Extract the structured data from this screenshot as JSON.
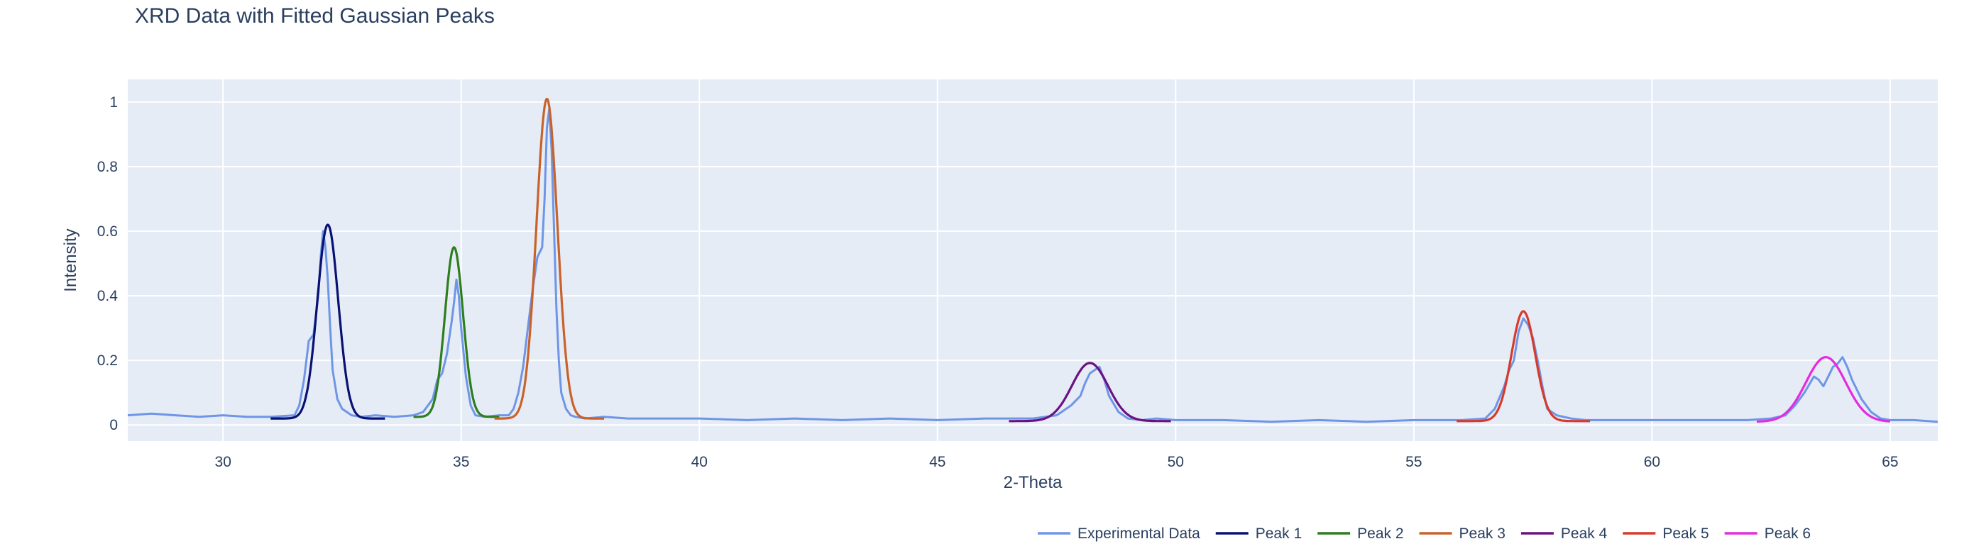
{
  "chart_data": {
    "type": "line",
    "title": "XRD Data with Fitted Gaussian Peaks",
    "xlabel": "2-Theta",
    "ylabel": "Intensity",
    "xlim": [
      28,
      66
    ],
    "ylim": [
      -0.05,
      1.07
    ],
    "xticks": [
      30,
      35,
      40,
      45,
      50,
      55,
      60,
      65
    ],
    "yticks": [
      0,
      0.2,
      0.4,
      0.6,
      0.8,
      1
    ],
    "ytick_labels": [
      "0",
      "0.2",
      "0.4",
      "0.6",
      "0.8",
      "1"
    ],
    "grid": true,
    "legend_position": "bottom-right, horizontal",
    "plot_background": "#e5ecf6",
    "experimental": {
      "name": "Experimental Data",
      "color": "#6f95e6",
      "x": [
        28.0,
        28.5,
        29.0,
        29.5,
        30.0,
        30.5,
        31.0,
        31.5,
        31.6,
        31.7,
        31.8,
        31.9,
        32.0,
        32.05,
        32.1,
        32.15,
        32.2,
        32.25,
        32.3,
        32.4,
        32.5,
        32.6,
        32.7,
        32.9,
        33.2,
        33.6,
        34.0,
        34.2,
        34.4,
        34.5,
        34.6,
        34.7,
        34.8,
        34.85,
        34.9,
        34.95,
        35.0,
        35.1,
        35.2,
        35.3,
        35.5,
        35.8,
        36.0,
        36.1,
        36.2,
        36.3,
        36.4,
        36.5,
        36.6,
        36.7,
        36.75,
        36.8,
        36.85,
        36.9,
        36.95,
        37.0,
        37.05,
        37.1,
        37.2,
        37.3,
        37.4,
        37.6,
        38.0,
        38.5,
        39.0,
        40.0,
        41.0,
        42.0,
        43.0,
        44.0,
        45.0,
        46.0,
        46.5,
        47.0,
        47.5,
        47.8,
        48.0,
        48.1,
        48.2,
        48.3,
        48.4,
        48.5,
        48.6,
        48.8,
        49.0,
        49.3,
        49.6,
        50.0,
        51.0,
        52.0,
        53.0,
        54.0,
        55.0,
        56.0,
        56.5,
        56.7,
        56.9,
        57.0,
        57.1,
        57.2,
        57.3,
        57.4,
        57.5,
        57.6,
        57.7,
        57.8,
        58.0,
        58.3,
        58.6,
        59.0,
        60.0,
        61.0,
        62.0,
        62.5,
        62.8,
        63.0,
        63.2,
        63.4,
        63.5,
        63.6,
        63.7,
        63.8,
        63.9,
        64.0,
        64.1,
        64.2,
        64.4,
        64.6,
        64.8,
        65.0,
        65.5,
        66.0
      ],
      "y": [
        0.03,
        0.035,
        0.03,
        0.025,
        0.03,
        0.025,
        0.025,
        0.03,
        0.06,
        0.14,
        0.26,
        0.28,
        0.4,
        0.52,
        0.6,
        0.55,
        0.45,
        0.3,
        0.17,
        0.08,
        0.05,
        0.04,
        0.03,
        0.025,
        0.03,
        0.025,
        0.03,
        0.04,
        0.08,
        0.14,
        0.16,
        0.22,
        0.32,
        0.38,
        0.45,
        0.4,
        0.3,
        0.15,
        0.06,
        0.03,
        0.025,
        0.03,
        0.03,
        0.05,
        0.1,
        0.18,
        0.3,
        0.42,
        0.52,
        0.55,
        0.7,
        0.92,
        0.98,
        0.85,
        0.6,
        0.36,
        0.2,
        0.1,
        0.05,
        0.03,
        0.025,
        0.02,
        0.025,
        0.02,
        0.02,
        0.02,
        0.015,
        0.02,
        0.015,
        0.02,
        0.015,
        0.02,
        0.02,
        0.02,
        0.03,
        0.06,
        0.09,
        0.13,
        0.16,
        0.17,
        0.18,
        0.14,
        0.09,
        0.04,
        0.02,
        0.015,
        0.02,
        0.015,
        0.015,
        0.01,
        0.015,
        0.01,
        0.015,
        0.015,
        0.02,
        0.05,
        0.12,
        0.17,
        0.2,
        0.29,
        0.33,
        0.31,
        0.27,
        0.2,
        0.12,
        0.05,
        0.03,
        0.02,
        0.015,
        0.015,
        0.015,
        0.015,
        0.015,
        0.02,
        0.03,
        0.06,
        0.1,
        0.15,
        0.14,
        0.12,
        0.15,
        0.18,
        0.19,
        0.21,
        0.18,
        0.14,
        0.08,
        0.04,
        0.02,
        0.015,
        0.015,
        0.01
      ]
    },
    "series": [
      {
        "name": "Peak 1",
        "color": "#0a1172",
        "center": 32.2,
        "amplitude": 0.6,
        "sigma": 0.22,
        "baseline": 0.02,
        "x_range": [
          31.0,
          33.4
        ]
      },
      {
        "name": "Peak 2",
        "color": "#2e7d1f",
        "center": 34.85,
        "amplitude": 0.525,
        "sigma": 0.19,
        "baseline": 0.025,
        "x_range": [
          34.0,
          35.8
        ]
      },
      {
        "name": "Peak 3",
        "color": "#c8622a",
        "center": 36.8,
        "amplitude": 0.99,
        "sigma": 0.22,
        "baseline": 0.02,
        "x_range": [
          35.7,
          38.0
        ]
      },
      {
        "name": "Peak 4",
        "color": "#6b1282",
        "center": 48.2,
        "amplitude": 0.18,
        "sigma": 0.38,
        "baseline": 0.012,
        "x_range": [
          46.5,
          49.9
        ]
      },
      {
        "name": "Peak 5",
        "color": "#d73a2a",
        "center": 57.3,
        "amplitude": 0.34,
        "sigma": 0.25,
        "baseline": 0.012,
        "x_range": [
          55.9,
          58.7
        ]
      },
      {
        "name": "Peak 6",
        "color": "#e32be0",
        "center": 63.65,
        "amplitude": 0.2,
        "sigma": 0.42,
        "baseline": 0.01,
        "x_range": [
          62.2,
          65.0
        ]
      }
    ]
  }
}
